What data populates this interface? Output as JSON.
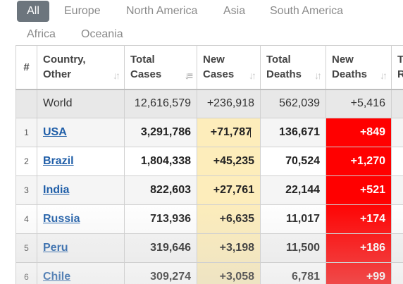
{
  "tabs": [
    {
      "label": "All",
      "active": true
    },
    {
      "label": "Europe"
    },
    {
      "label": "North America"
    },
    {
      "label": "Asia"
    },
    {
      "label": "South America"
    },
    {
      "label": "Africa"
    },
    {
      "label": "Oceania"
    }
  ],
  "table": {
    "headers": {
      "rank": "#",
      "country": [
        "Country,",
        "Other"
      ],
      "total_cases": [
        "Total",
        "Cases"
      ],
      "new_cases": [
        "New",
        "Cases"
      ],
      "total_deaths": [
        "Total",
        "Deaths"
      ],
      "new_deaths": [
        "New",
        "Deaths"
      ],
      "next": [
        "T",
        "R"
      ]
    },
    "world": {
      "country": "World",
      "total_cases": "12,616,579",
      "new_cases": "+236,918",
      "total_deaths": "562,039",
      "new_deaths": "+5,416"
    },
    "rows": [
      {
        "rank": "1",
        "country": "USA",
        "total_cases": "3,291,786",
        "new_cases": "+71,787",
        "total_deaths": "136,671",
        "new_deaths": "+849"
      },
      {
        "rank": "2",
        "country": "Brazil",
        "total_cases": "1,804,338",
        "new_cases": "+45,235",
        "total_deaths": "70,524",
        "new_deaths": "+1,270"
      },
      {
        "rank": "3",
        "country": "India",
        "total_cases": "822,603",
        "new_cases": "+27,761",
        "total_deaths": "22,144",
        "new_deaths": "+521"
      },
      {
        "rank": "4",
        "country": "Russia",
        "total_cases": "713,936",
        "new_cases": "+6,635",
        "total_deaths": "11,017",
        "new_deaths": "+174"
      },
      {
        "rank": "5",
        "country": "Peru",
        "total_cases": "319,646",
        "new_cases": "+3,198",
        "total_deaths": "11,500",
        "new_deaths": "+186"
      },
      {
        "rank": "6",
        "country": "Chile",
        "total_cases": "309,274",
        "new_cases": "+3,058",
        "total_deaths": "6,781",
        "new_deaths": "+99"
      }
    ]
  }
}
